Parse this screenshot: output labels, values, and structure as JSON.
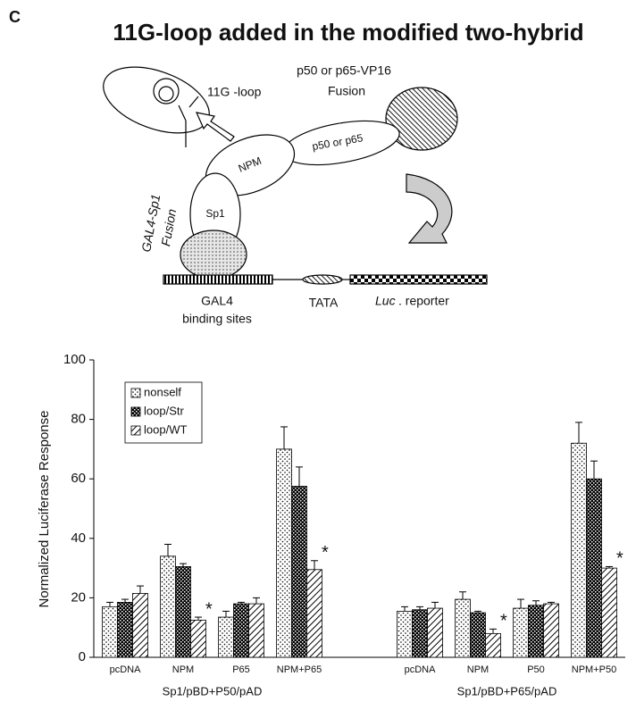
{
  "panel_label": "C",
  "title": "11G-loop added in the modified two-hybrid",
  "diagram": {
    "loop": "11G  -loop",
    "fusion_top": "p50 or p65-VP16",
    "fusion_top_2": "Fusion",
    "npm": "NPM",
    "p50_p65": "p50 or p65",
    "sp1": "Sp1",
    "gal4_sp1": "GAL4-Sp1",
    "gal4_sp1_2": "Fusion",
    "gal4": "GAL4",
    "binding_sites": "binding sites",
    "tata": "TATA",
    "reporter_italic": "Luc",
    "reporter": ". reporter"
  },
  "chart_data": {
    "type": "bar",
    "y_label": "Normalized Luciferase Response",
    "categories": [
      "pcDNA",
      "NPM",
      "P65",
      "NPM+P65",
      "pcDNA",
      "NPM",
      "P50",
      "NPM+P50"
    ],
    "group_labels": [
      "Sp1/pBD+P50/pAD",
      "Sp1/pBD+P65/pAD"
    ],
    "series": [
      {
        "name": "nonself",
        "color": "#000000",
        "pattern": "dots",
        "values": [
          17,
          34,
          13.5,
          70,
          15.5,
          19.5,
          16.5,
          72
        ],
        "errors": [
          1.5,
          4,
          2,
          7.5,
          1.5,
          2.5,
          3,
          7
        ]
      },
      {
        "name": "loop/Str",
        "color": "#000000",
        "pattern": "checker",
        "values": [
          18.5,
          30.5,
          18,
          57.5,
          16,
          15,
          17.5,
          60
        ],
        "errors": [
          1,
          1,
          0.5,
          6.5,
          1,
          0.5,
          1.5,
          6
        ]
      },
      {
        "name": "loop/WT",
        "color": "#000000",
        "pattern": "hatch",
        "values": [
          21.5,
          12.5,
          18,
          29.5,
          16.5,
          8,
          18,
          30
        ],
        "errors": [
          2.5,
          1,
          2,
          3,
          2,
          1.5,
          0.5,
          0.5
        ],
        "annotations": [
          null,
          "*",
          null,
          "*",
          null,
          "*",
          null,
          "*"
        ]
      }
    ],
    "ylim": [
      0,
      100
    ],
    "yticks": [
      0,
      20,
      40,
      60,
      80,
      100
    ],
    "grid": false,
    "legend": "upper left"
  }
}
